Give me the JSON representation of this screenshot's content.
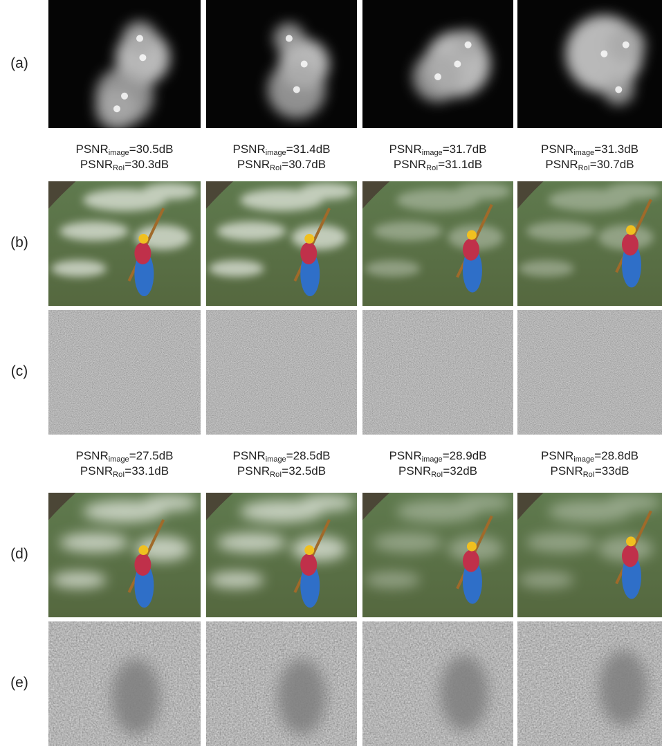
{
  "row_labels": [
    "(a)",
    "(b)",
    "(c)",
    "(d)",
    "(e)"
  ],
  "caption_sets": [
    [
      {
        "image": {
          "name": "PSNR",
          "sub": "image",
          "value": "=30.5dB"
        },
        "roi": {
          "name": "PSNR",
          "sub": "RoI",
          "value": "=30.3dB"
        }
      },
      {
        "image": {
          "name": "PSNR",
          "sub": "image",
          "value": "=31.4dB"
        },
        "roi": {
          "name": "PSNR",
          "sub": "RoI",
          "value": "=30.7dB"
        }
      },
      {
        "image": {
          "name": "PSNR",
          "sub": "image",
          "value": "=31.7dB"
        },
        "roi": {
          "name": "PSNR",
          "sub": "RoI",
          "value": "=31.1dB"
        }
      },
      {
        "image": {
          "name": "PSNR",
          "sub": "image",
          "value": "=31.3dB"
        },
        "roi": {
          "name": "PSNR",
          "sub": "RoI",
          "value": "=30.7dB"
        }
      }
    ],
    [
      {
        "image": {
          "name": "PSNR",
          "sub": "image",
          "value": "=27.5dB"
        },
        "roi": {
          "name": "PSNR",
          "sub": "RoI",
          "value": "=33.1dB"
        }
      },
      {
        "image": {
          "name": "PSNR",
          "sub": "image",
          "value": "=28.5dB"
        },
        "roi": {
          "name": "PSNR",
          "sub": "RoI",
          "value": "=32.5dB"
        }
      },
      {
        "image": {
          "name": "PSNR",
          "sub": "image",
          "value": "=28.9dB"
        },
        "roi": {
          "name": "PSNR",
          "sub": "RoI",
          "value": "=32dB"
        }
      },
      {
        "image": {
          "name": "PSNR",
          "sub": "image",
          "value": "=28.8dB"
        },
        "roi": {
          "name": "PSNR",
          "sub": "RoI",
          "value": "=33dB"
        }
      }
    ]
  ]
}
